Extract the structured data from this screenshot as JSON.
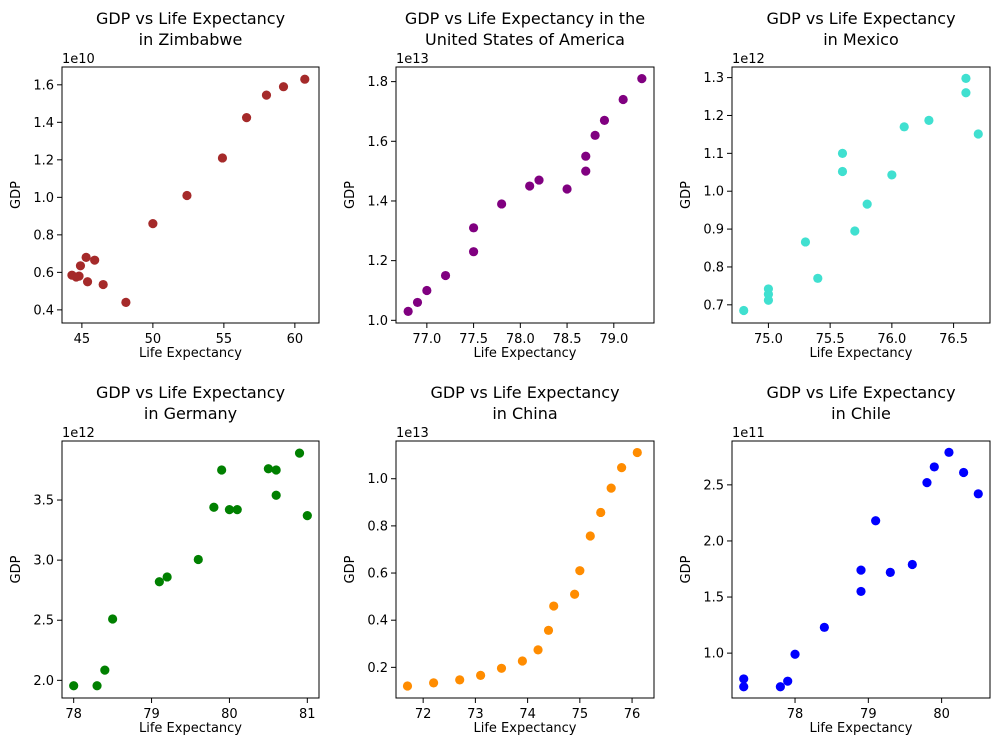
{
  "figure": {
    "background": "#ffffff"
  },
  "chart_data": [
    {
      "type": "scatter",
      "title": "GDP vs Life Expectancy\nin Zimbabwe",
      "xlabel": "Life Expectancy",
      "ylabel": "GDP",
      "y_offset_label": "1e10",
      "y_multiplier": 10000000000.0,
      "color": "#a52a2a",
      "xlim": [
        43.6,
        61.7
      ],
      "ylim": [
        0.33,
        1.695
      ],
      "xticks": [
        45,
        50,
        55,
        60
      ],
      "xtick_labels": [
        "45",
        "50",
        "55",
        "60"
      ],
      "yticks": [
        0.4,
        0.6,
        0.8,
        1.0,
        1.2,
        1.4,
        1.6
      ],
      "ytick_labels": [
        "0.4",
        "0.6",
        "0.8",
        "1.0",
        "1.2",
        "1.4",
        "1.6"
      ],
      "grid": false,
      "points": [
        {
          "x": 44.3,
          "y": 0.585
        },
        {
          "x": 44.6,
          "y": 0.575
        },
        {
          "x": 44.8,
          "y": 0.58
        },
        {
          "x": 44.9,
          "y": 0.635
        },
        {
          "x": 45.3,
          "y": 0.68
        },
        {
          "x": 45.4,
          "y": 0.55
        },
        {
          "x": 45.9,
          "y": 0.665
        },
        {
          "x": 46.5,
          "y": 0.535
        },
        {
          "x": 48.1,
          "y": 0.44
        },
        {
          "x": 50.0,
          "y": 0.86
        },
        {
          "x": 52.4,
          "y": 1.01
        },
        {
          "x": 54.9,
          "y": 1.21
        },
        {
          "x": 56.6,
          "y": 1.425
        },
        {
          "x": 58.0,
          "y": 1.545
        },
        {
          "x": 59.2,
          "y": 1.59
        },
        {
          "x": 60.7,
          "y": 1.63
        }
      ]
    },
    {
      "type": "scatter",
      "title": "GDP vs Life Expectancy in the\nUnited States of America",
      "xlabel": "Life Expectancy",
      "ylabel": "GDP",
      "y_offset_label": "1e13",
      "y_multiplier": 10000000000000.0,
      "color": "#800080",
      "xlim": [
        76.67,
        79.43
      ],
      "ylim": [
        0.991,
        1.849
      ],
      "xticks": [
        77.0,
        77.5,
        78.0,
        78.5,
        79.0
      ],
      "xtick_labels": [
        "77.0",
        "77.5",
        "78.0",
        "78.5",
        "79.0"
      ],
      "yticks": [
        1.0,
        1.2,
        1.4,
        1.6,
        1.8
      ],
      "ytick_labels": [
        "1.0",
        "1.2",
        "1.4",
        "1.6",
        "1.8"
      ],
      "grid": false,
      "points": [
        {
          "x": 76.8,
          "y": 1.03
        },
        {
          "x": 76.9,
          "y": 1.06
        },
        {
          "x": 77.0,
          "y": 1.1
        },
        {
          "x": 77.2,
          "y": 1.15
        },
        {
          "x": 77.5,
          "y": 1.23
        },
        {
          "x": 77.5,
          "y": 1.31
        },
        {
          "x": 77.8,
          "y": 1.39
        },
        {
          "x": 78.1,
          "y": 1.45
        },
        {
          "x": 78.2,
          "y": 1.47
        },
        {
          "x": 78.5,
          "y": 1.44
        },
        {
          "x": 78.7,
          "y": 1.5
        },
        {
          "x": 78.7,
          "y": 1.55
        },
        {
          "x": 78.8,
          "y": 1.62
        },
        {
          "x": 78.9,
          "y": 1.67
        },
        {
          "x": 79.1,
          "y": 1.74
        },
        {
          "x": 79.3,
          "y": 1.81
        }
      ]
    },
    {
      "type": "scatter",
      "title": "GDP vs Life Expectancy\nin Mexico",
      "xlabel": "Life Expectancy",
      "ylabel": "GDP",
      "y_offset_label": "1e12",
      "y_multiplier": 1000000000000.0,
      "color": "#40e0d0",
      "xlim": [
        74.705,
        76.795
      ],
      "ylim": [
        0.652,
        1.328
      ],
      "xticks": [
        75.0,
        75.5,
        76.0,
        76.5
      ],
      "xtick_labels": [
        "75.0",
        "75.5",
        "76.0",
        "76.5"
      ],
      "yticks": [
        0.7,
        0.8,
        0.9,
        1.0,
        1.1,
        1.2,
        1.3
      ],
      "ytick_labels": [
        "0.7",
        "0.8",
        "0.9",
        "1.0",
        "1.1",
        "1.2",
        "1.3"
      ],
      "grid": false,
      "points": [
        {
          "x": 74.8,
          "y": 0.685
        },
        {
          "x": 75.0,
          "y": 0.712
        },
        {
          "x": 75.0,
          "y": 0.728
        },
        {
          "x": 75.0,
          "y": 0.742
        },
        {
          "x": 75.3,
          "y": 0.866
        },
        {
          "x": 75.4,
          "y": 0.77
        },
        {
          "x": 75.6,
          "y": 1.052
        },
        {
          "x": 75.6,
          "y": 1.1
        },
        {
          "x": 75.7,
          "y": 0.895
        },
        {
          "x": 75.8,
          "y": 0.966
        },
        {
          "x": 76.0,
          "y": 1.043
        },
        {
          "x": 76.1,
          "y": 1.17
        },
        {
          "x": 76.3,
          "y": 1.187
        },
        {
          "x": 76.6,
          "y": 1.26
        },
        {
          "x": 76.6,
          "y": 1.298
        },
        {
          "x": 76.7,
          "y": 1.151
        }
      ]
    },
    {
      "type": "scatter",
      "title": "GDP vs Life Expectancy\nin Germany",
      "xlabel": "Life Expectancy",
      "ylabel": "GDP",
      "y_offset_label": "1e12",
      "y_multiplier": 1000000000000.0,
      "color": "#008000",
      "xlim": [
        77.85,
        81.15
      ],
      "ylim": [
        1.853,
        3.991
      ],
      "xticks": [
        78,
        79,
        80,
        81
      ],
      "xtick_labels": [
        "78",
        "79",
        "80",
        "81"
      ],
      "yticks": [
        2.0,
        2.5,
        3.0,
        3.5
      ],
      "ytick_labels": [
        "2.0",
        "2.5",
        "3.0",
        "3.5"
      ],
      "grid": false,
      "points": [
        {
          "x": 78.0,
          "y": 1.955
        },
        {
          "x": 78.3,
          "y": 1.955
        },
        {
          "x": 78.4,
          "y": 2.085
        },
        {
          "x": 78.5,
          "y": 2.51
        },
        {
          "x": 79.1,
          "y": 2.82
        },
        {
          "x": 79.2,
          "y": 2.86
        },
        {
          "x": 79.6,
          "y": 3.005
        },
        {
          "x": 79.8,
          "y": 3.44
        },
        {
          "x": 79.9,
          "y": 3.75
        },
        {
          "x": 80.0,
          "y": 3.42
        },
        {
          "x": 80.1,
          "y": 3.42
        },
        {
          "x": 80.5,
          "y": 3.76
        },
        {
          "x": 80.6,
          "y": 3.54
        },
        {
          "x": 80.6,
          "y": 3.75
        },
        {
          "x": 80.9,
          "y": 3.89
        },
        {
          "x": 81.0,
          "y": 3.37
        }
      ]
    },
    {
      "type": "scatter",
      "title": "GDP vs Life Expectancy\nin China",
      "xlabel": "Life Expectancy",
      "ylabel": "GDP",
      "y_offset_label": "1e13",
      "y_multiplier": 10000000000000.0,
      "color": "#ff8c00",
      "xlim": [
        71.48,
        76.42
      ],
      "ylim": [
        0.07,
        1.16
      ],
      "xticks": [
        72,
        73,
        74,
        75,
        76
      ],
      "xtick_labels": [
        "72",
        "73",
        "74",
        "75",
        "76"
      ],
      "yticks": [
        0.2,
        0.4,
        0.6,
        0.8,
        1.0
      ],
      "ytick_labels": [
        "0.2",
        "0.4",
        "0.6",
        "0.8",
        "1.0"
      ],
      "grid": false,
      "points": [
        {
          "x": 71.7,
          "y": 0.121
        },
        {
          "x": 72.2,
          "y": 0.134
        },
        {
          "x": 72.7,
          "y": 0.147
        },
        {
          "x": 73.1,
          "y": 0.166
        },
        {
          "x": 73.5,
          "y": 0.196
        },
        {
          "x": 73.9,
          "y": 0.227
        },
        {
          "x": 74.2,
          "y": 0.274
        },
        {
          "x": 74.4,
          "y": 0.357
        },
        {
          "x": 74.5,
          "y": 0.46
        },
        {
          "x": 74.9,
          "y": 0.51
        },
        {
          "x": 75.0,
          "y": 0.61
        },
        {
          "x": 75.2,
          "y": 0.757
        },
        {
          "x": 75.4,
          "y": 0.857
        },
        {
          "x": 75.6,
          "y": 0.96
        },
        {
          "x": 75.8,
          "y": 1.047
        },
        {
          "x": 76.1,
          "y": 1.111
        }
      ]
    },
    {
      "type": "scatter",
      "title": "GDP vs Life Expectancy\nin Chile",
      "xlabel": "Life Expectancy",
      "ylabel": "GDP",
      "y_offset_label": "1e11",
      "y_multiplier": 100000000000.0,
      "color": "#0000ff",
      "xlim": [
        77.14,
        80.66
      ],
      "ylim": [
        0.6,
        2.891
      ],
      "xticks": [
        78,
        79,
        80
      ],
      "xtick_labels": [
        "78",
        "79",
        "80"
      ],
      "yticks": [
        1.0,
        1.5,
        2.0,
        2.5
      ],
      "ytick_labels": [
        "1.0",
        "1.5",
        "2.0",
        "2.5"
      ],
      "grid": false,
      "points": [
        {
          "x": 77.3,
          "y": 0.7
        },
        {
          "x": 77.3,
          "y": 0.77
        },
        {
          "x": 77.8,
          "y": 0.7
        },
        {
          "x": 77.9,
          "y": 0.75
        },
        {
          "x": 78.0,
          "y": 0.99
        },
        {
          "x": 78.4,
          "y": 1.23
        },
        {
          "x": 78.9,
          "y": 1.74
        },
        {
          "x": 78.9,
          "y": 1.55
        },
        {
          "x": 79.1,
          "y": 2.18
        },
        {
          "x": 79.3,
          "y": 1.72
        },
        {
          "x": 79.6,
          "y": 1.79
        },
        {
          "x": 79.8,
          "y": 2.52
        },
        {
          "x": 79.9,
          "y": 2.66
        },
        {
          "x": 80.1,
          "y": 2.79
        },
        {
          "x": 80.3,
          "y": 2.61
        },
        {
          "x": 80.5,
          "y": 2.42
        }
      ]
    }
  ]
}
